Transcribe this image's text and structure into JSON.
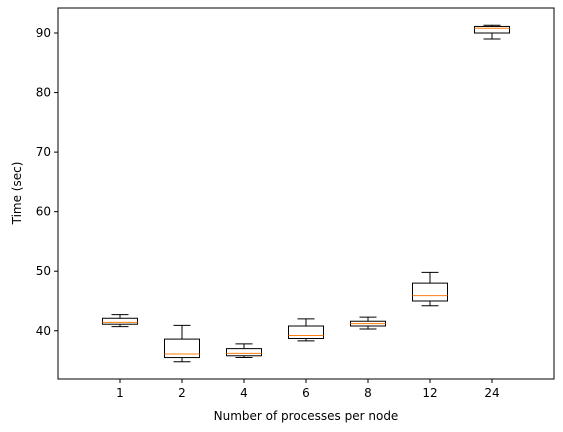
{
  "chart_data": {
    "type": "boxplot",
    "xlabel": "Number of processes per node",
    "ylabel": "Time (sec)",
    "categories": [
      "1",
      "2",
      "4",
      "6",
      "8",
      "12",
      "24"
    ],
    "boxes": [
      {
        "whisker_low": 40.7,
        "q1": 41.1,
        "median": 41.4,
        "q3": 42.1,
        "whisker_high": 42.7
      },
      {
        "whisker_low": 34.8,
        "q1": 35.5,
        "median": 36.1,
        "q3": 38.6,
        "whisker_high": 40.9
      },
      {
        "whisker_low": 35.5,
        "q1": 35.8,
        "median": 36.2,
        "q3": 37.0,
        "whisker_high": 37.8
      },
      {
        "whisker_low": 38.3,
        "q1": 38.7,
        "median": 39.2,
        "q3": 40.8,
        "whisker_high": 42.0
      },
      {
        "whisker_low": 40.3,
        "q1": 40.8,
        "median": 41.2,
        "q3": 41.6,
        "whisker_high": 42.3
      },
      {
        "whisker_low": 44.2,
        "q1": 45.0,
        "median": 45.9,
        "q3": 48.0,
        "whisker_high": 49.8
      },
      {
        "whisker_low": 89.0,
        "q1": 90.0,
        "median": 90.8,
        "q3": 91.1,
        "whisker_high": 91.3
      }
    ],
    "yticks": [
      40,
      50,
      60,
      70,
      80,
      90
    ],
    "ylim": [
      31.9,
      94.2
    ],
    "grid": false,
    "colors": {
      "box": "#000000",
      "median": "#ff7f0e",
      "background": "#ffffff"
    }
  }
}
